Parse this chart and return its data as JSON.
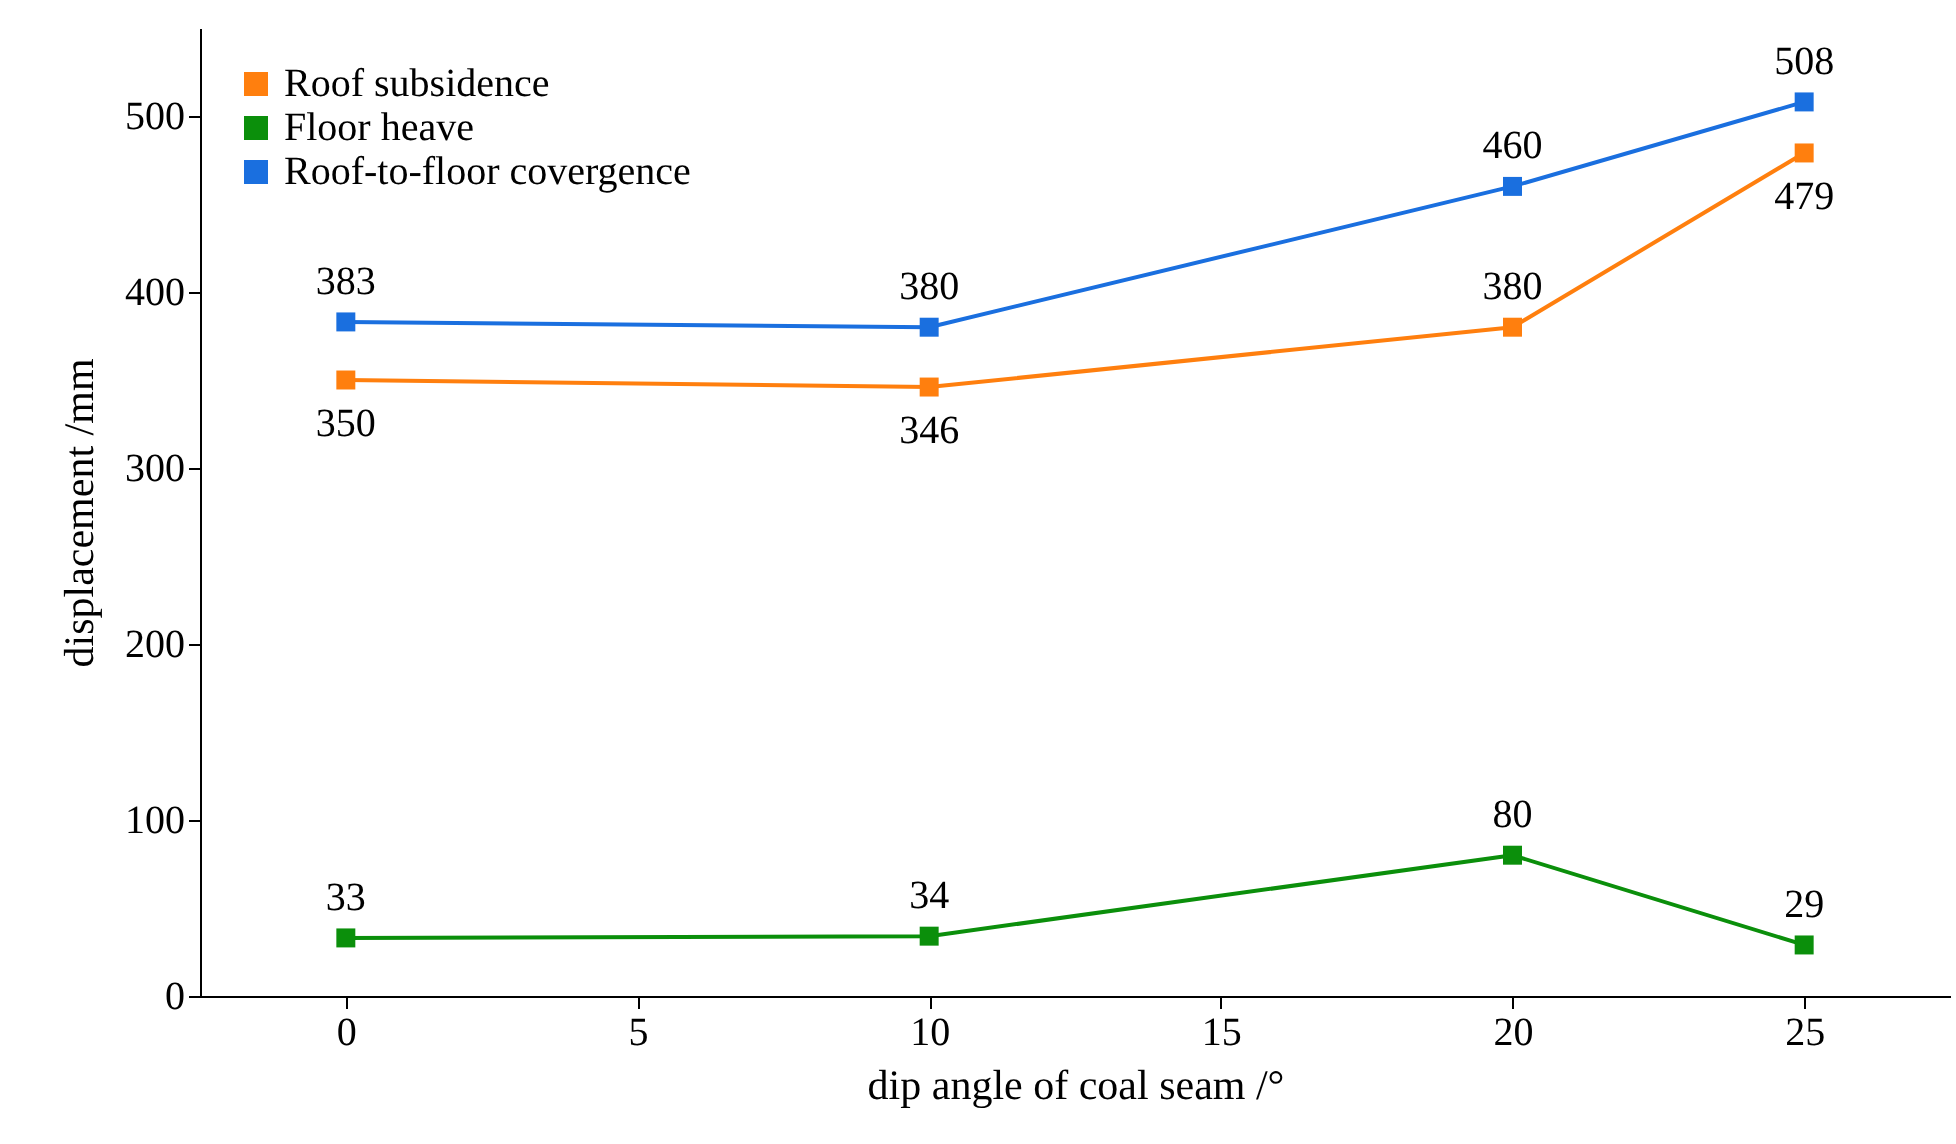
{
  "chart_data": {
    "type": "line",
    "xlabel": "dip angle of coal seam /°",
    "ylabel": "displacement /mm",
    "x": [
      0,
      10,
      20,
      25
    ],
    "series": [
      {
        "name": "Roof subsidence",
        "color": "#ff7f0e",
        "values": [
          350,
          346,
          380,
          479
        ]
      },
      {
        "name": "Floor heave",
        "color": "#0b8f0b",
        "values": [
          33,
          34,
          80,
          29
        ]
      },
      {
        "name": "Roof-to-floor covergence",
        "color": "#1a6fdf",
        "values": [
          383,
          380,
          460,
          508
        ]
      }
    ],
    "xlim": [
      -2.5,
      27.5
    ],
    "xticks": [
      0,
      5,
      10,
      15,
      20,
      25
    ],
    "ylim": [
      0,
      550
    ],
    "yticks": [
      0,
      100,
      200,
      300,
      400,
      500
    ],
    "grid": false,
    "legend": "top left",
    "marker": "square",
    "line_style": "solid",
    "data_labels": true
  }
}
